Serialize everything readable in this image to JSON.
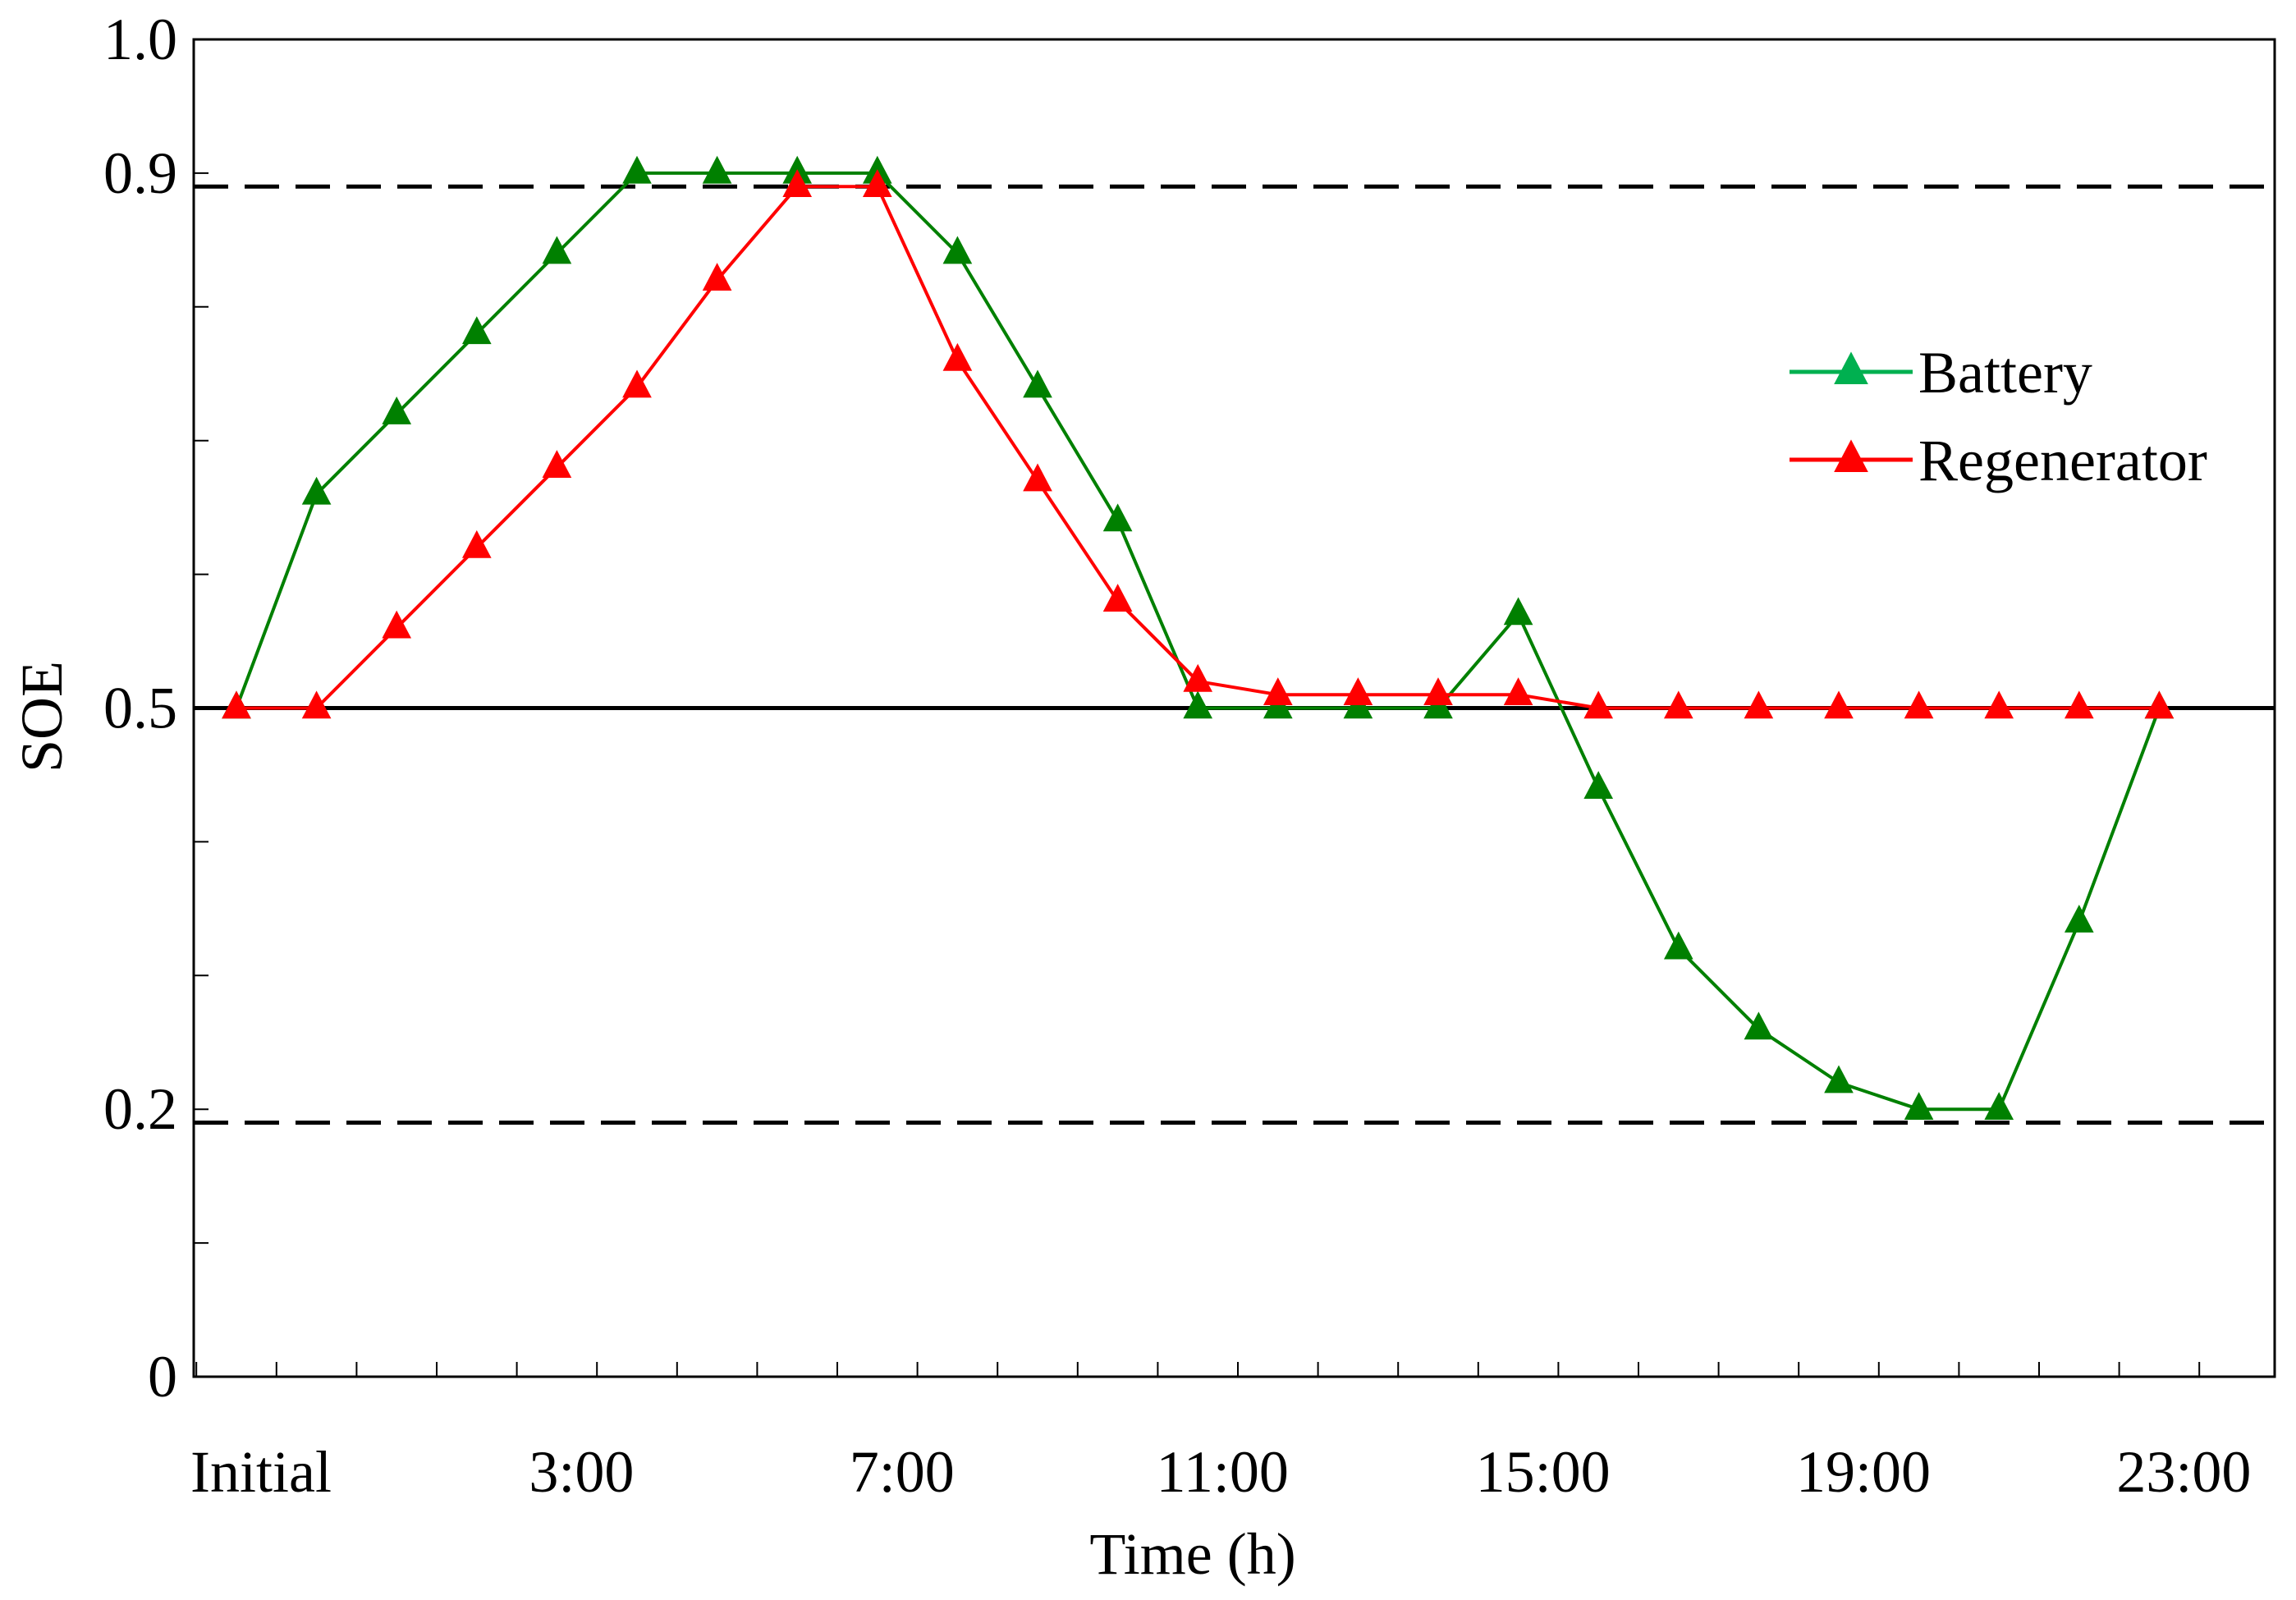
{
  "chart_data": {
    "type": "line",
    "xlabel": "Time (h)",
    "ylabel": "SOE",
    "ylim": [
      0,
      1.0
    ],
    "x": [
      0,
      1,
      2,
      3,
      4,
      5,
      6,
      7,
      8,
      9,
      10,
      11,
      12,
      13,
      14,
      15,
      16,
      17,
      18,
      19,
      20,
      21,
      22,
      23,
      24
    ],
    "x_tick_labels": [
      {
        "x": 0,
        "label": "Initial"
      },
      {
        "x": 4,
        "label": "3:00"
      },
      {
        "x": 8,
        "label": "7:00"
      },
      {
        "x": 12,
        "label": "11:00"
      },
      {
        "x": 16,
        "label": "15:00"
      },
      {
        "x": 20,
        "label": "19:00"
      },
      {
        "x": 24,
        "label": "23:00"
      }
    ],
    "y_tick_labels": [
      {
        "y": 0,
        "label": "0"
      },
      {
        "y": 0.2,
        "label": "0.2"
      },
      {
        "y": 0.5,
        "label": "0.5"
      },
      {
        "y": 0.9,
        "label": "0.9"
      },
      {
        "y": 1.0,
        "label": "1.0"
      }
    ],
    "reference_lines": [
      {
        "y": 0.89,
        "style": "dashed"
      },
      {
        "y": 0.5,
        "style": "solid"
      },
      {
        "y": 0.19,
        "style": "dashed"
      }
    ],
    "series": [
      {
        "name": "Battery",
        "color": "#008000",
        "legend_color": "#00b050",
        "marker": "triangle",
        "values": [
          0.5,
          0.66,
          0.72,
          0.78,
          0.84,
          0.9,
          0.9,
          0.9,
          0.9,
          0.84,
          0.74,
          0.64,
          0.5,
          0.5,
          0.5,
          0.5,
          0.57,
          0.44,
          0.32,
          0.26,
          0.22,
          0.2,
          0.2,
          0.34,
          0.5
        ]
      },
      {
        "name": "Regenerator",
        "color": "#ff0000",
        "legend_color": "#ff0000",
        "marker": "triangle",
        "values": [
          0.5,
          0.5,
          0.56,
          0.62,
          0.68,
          0.74,
          0.82,
          0.89,
          0.89,
          0.76,
          0.67,
          0.58,
          0.52,
          0.51,
          0.51,
          0.51,
          0.51,
          0.5,
          0.5,
          0.5,
          0.5,
          0.5,
          0.5,
          0.5,
          0.5
        ]
      }
    ],
    "legend_position": "right",
    "grid": false
  }
}
